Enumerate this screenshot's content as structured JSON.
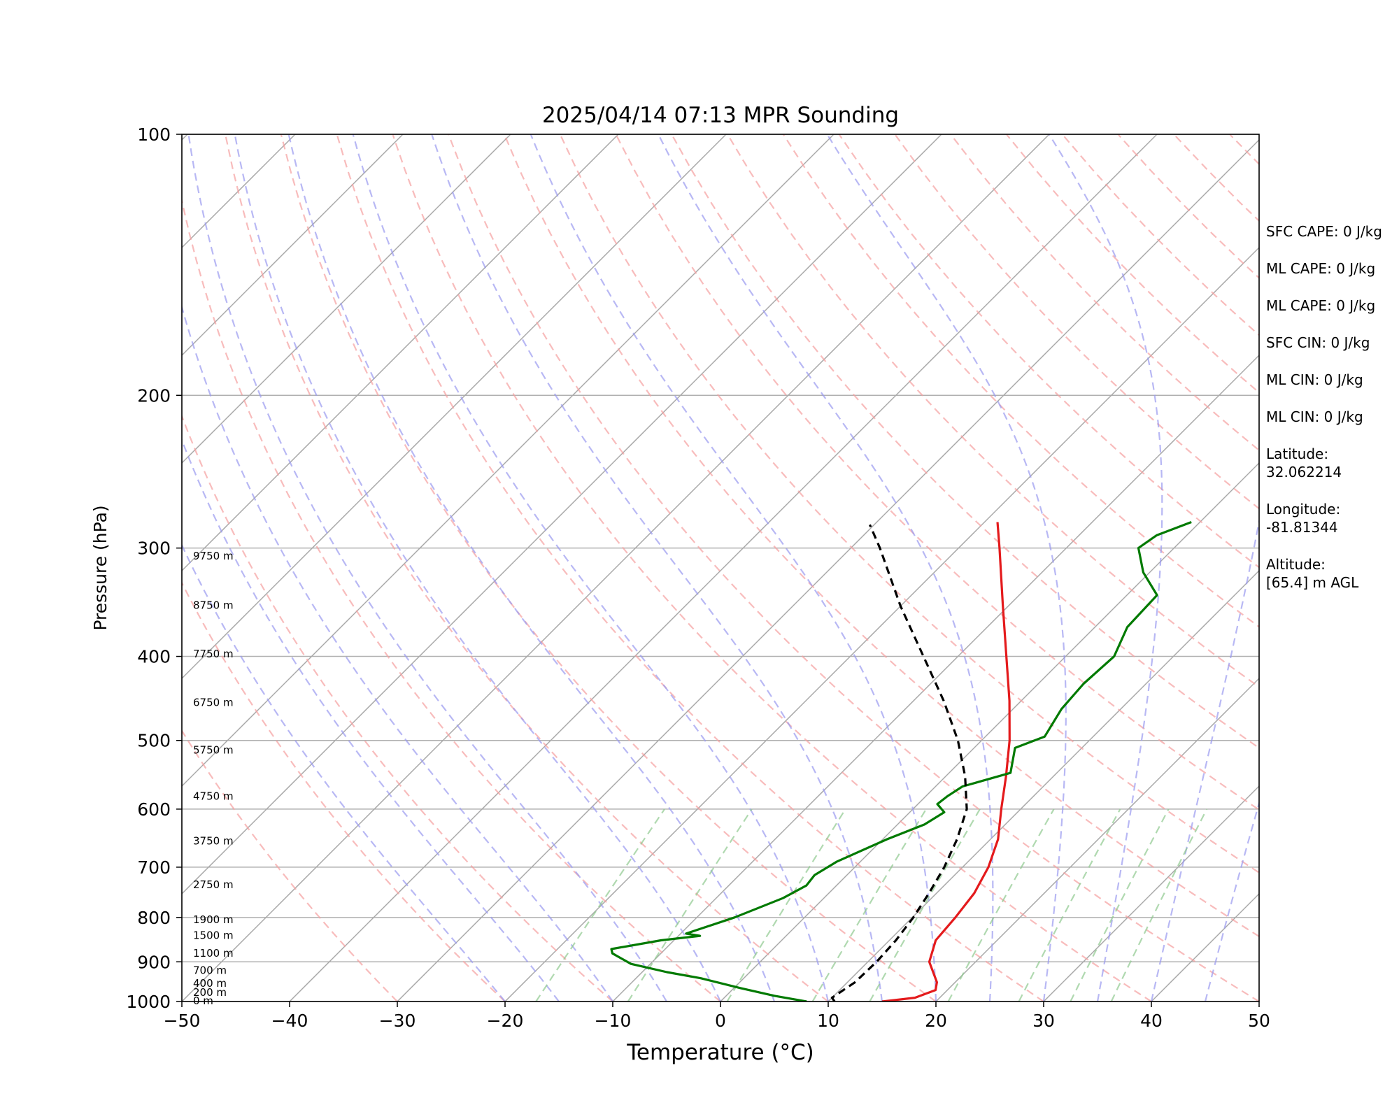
{
  "chart_data": {
    "type": "line",
    "title": "2025/04/14 07:13 MPR Sounding",
    "xlabel": "Temperature (°C)",
    "ylabel": "Pressure (hPa)",
    "xlim": [
      -50,
      50
    ],
    "ylim": [
      1000,
      100
    ],
    "y_scale": "log",
    "skew": true,
    "x_ticks": [
      "−50",
      "−40",
      "−30",
      "−20",
      "−10",
      "0",
      "10",
      "20",
      "30",
      "40",
      "50"
    ],
    "y_ticks": [
      "100",
      "200",
      "300",
      "400",
      "500",
      "600",
      "700",
      "800",
      "900",
      "1000"
    ],
    "height_labels": [
      {
        "label": "0 m",
        "p": 1000
      },
      {
        "label": "200 m",
        "p": 978
      },
      {
        "label": "400 m",
        "p": 955
      },
      {
        "label": "700 m",
        "p": 922
      },
      {
        "label": "1100 m",
        "p": 881
      },
      {
        "label": "1500 m",
        "p": 841
      },
      {
        "label": "1900 m",
        "p": 806
      },
      {
        "label": "2750 m",
        "p": 735
      },
      {
        "label": "3750 m",
        "p": 654
      },
      {
        "label": "4750 m",
        "p": 581
      },
      {
        "label": "5750 m",
        "p": 514
      },
      {
        "label": "6750 m",
        "p": 453
      },
      {
        "label": "7750 m",
        "p": 398
      },
      {
        "label": "8750 m",
        "p": 350
      },
      {
        "label": "9750 m",
        "p": 307
      }
    ],
    "series": [
      {
        "kind": "temperature",
        "color": "#e41a1c",
        "points": [
          {
            "p": 1000,
            "t": 15.0
          },
          {
            "p": 990,
            "t": 17.7
          },
          {
            "p": 970,
            "t": 18.9
          },
          {
            "p": 950,
            "t": 18.3
          },
          {
            "p": 900,
            "t": 15.7
          },
          {
            "p": 850,
            "t": 14.3
          },
          {
            "p": 800,
            "t": 14.0
          },
          {
            "p": 750,
            "t": 13.5
          },
          {
            "p": 700,
            "t": 12.4
          },
          {
            "p": 650,
            "t": 10.7
          },
          {
            "p": 600,
            "t": 8.2
          },
          {
            "p": 550,
            "t": 5.6
          },
          {
            "p": 500,
            "t": 2.6
          },
          {
            "p": 450,
            "t": -1.1
          },
          {
            "p": 400,
            "t": -5.5
          },
          {
            "p": 350,
            "t": -10.5
          },
          {
            "p": 300,
            "t": -16.2
          },
          {
            "p": 280,
            "t": -18.8
          }
        ]
      },
      {
        "kind": "dewpoint",
        "color": "#007a00",
        "points": [
          {
            "p": 1000,
            "t": 8.0
          },
          {
            "p": 985,
            "t": 4.5
          },
          {
            "p": 965,
            "t": 0.6
          },
          {
            "p": 940,
            "t": -4.0
          },
          {
            "p": 925,
            "t": -7.7
          },
          {
            "p": 905,
            "t": -11.8
          },
          {
            "p": 880,
            "t": -14.5
          },
          {
            "p": 870,
            "t": -15.0
          },
          {
            "p": 850,
            "t": -11.2
          },
          {
            "p": 840,
            "t": -8.0
          },
          {
            "p": 835,
            "t": -9.5
          },
          {
            "p": 800,
            "t": -6.5
          },
          {
            "p": 760,
            "t": -3.8
          },
          {
            "p": 735,
            "t": -2.8
          },
          {
            "p": 715,
            "t": -3.0
          },
          {
            "p": 690,
            "t": -2.2
          },
          {
            "p": 650,
            "t": 0.4
          },
          {
            "p": 625,
            "t": 2.5
          },
          {
            "p": 605,
            "t": 3.2
          },
          {
            "p": 592,
            "t": 1.8
          },
          {
            "p": 580,
            "t": 2.0
          },
          {
            "p": 565,
            "t": 2.5
          },
          {
            "p": 545,
            "t": 5.7
          },
          {
            "p": 510,
            "t": 3.8
          },
          {
            "p": 495,
            "t": 5.5
          },
          {
            "p": 460,
            "t": 4.5
          },
          {
            "p": 430,
            "t": 4.2
          },
          {
            "p": 400,
            "t": 4.5
          },
          {
            "p": 370,
            "t": 3.0
          },
          {
            "p": 340,
            "t": 2.8
          },
          {
            "p": 320,
            "t": -0.6
          },
          {
            "p": 300,
            "t": -3.3
          },
          {
            "p": 290,
            "t": -2.8
          },
          {
            "p": 280,
            "t": -0.8
          }
        ]
      },
      {
        "kind": "parcel",
        "color": "#000000",
        "points": [
          {
            "p": 1000,
            "t": 10.6
          },
          {
            "p": 990,
            "t": 10.0
          },
          {
            "p": 950,
            "t": 10.7
          },
          {
            "p": 900,
            "t": 10.8
          },
          {
            "p": 850,
            "t": 10.6
          },
          {
            "p": 800,
            "t": 10.1
          },
          {
            "p": 750,
            "t": 9.3
          },
          {
            "p": 700,
            "t": 8.3
          },
          {
            "p": 650,
            "t": 6.9
          },
          {
            "p": 600,
            "t": 5.0
          },
          {
            "p": 550,
            "t": 1.8
          },
          {
            "p": 500,
            "t": -2.2
          },
          {
            "p": 450,
            "t": -7.2
          },
          {
            "p": 400,
            "t": -13.2
          },
          {
            "p": 350,
            "t": -20.0
          },
          {
            "p": 300,
            "t": -27.3
          },
          {
            "p": 282,
            "t": -30.4
          }
        ]
      }
    ]
  },
  "side_panel": {
    "sfc_cape": "SFC CAPE: 0 J/kg",
    "ml_cape_1": "ML CAPE: 0 J/kg",
    "ml_cape_2": "ML CAPE: 0 J/kg",
    "sfc_cin": "SFC CIN: 0 J/kg",
    "ml_cin_1": "ML CIN: 0 J/kg",
    "ml_cin_2": "ML CIN: 0 J/kg",
    "latitude_label": "Latitude:",
    "latitude_value": "32.062214",
    "longitude_label": "Longitude:",
    "longitude_value": "-81.81344",
    "altitude_label": "Altitude:",
    "altitude_value": "[65.4] m AGL"
  }
}
